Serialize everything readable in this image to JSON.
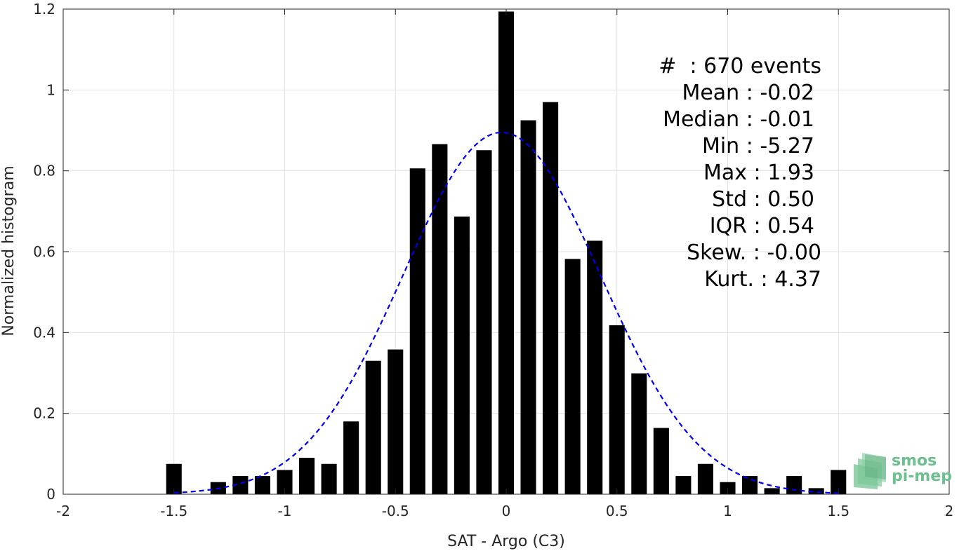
{
  "chart_data": {
    "type": "bar",
    "title": "",
    "xlabel": "SAT - Argo (C3)",
    "ylabel": "Normalized histogram",
    "xlim": [
      -2,
      2
    ],
    "ylim": [
      0,
      1.2
    ],
    "grid": true,
    "xticks": [
      -2,
      -1.5,
      -1,
      -0.5,
      0,
      0.5,
      1,
      1.5,
      2
    ],
    "xtick_labels": [
      "-2",
      "-1.5",
      "-1",
      "-0.5",
      "0",
      "0.5",
      "1",
      "1.5",
      "2"
    ],
    "yticks": [
      0,
      0.2,
      0.4,
      0.6,
      0.8,
      1,
      1.2
    ],
    "ytick_labels": [
      "0",
      "0.2",
      "0.4",
      "0.6",
      "0.8",
      "1",
      "1.2"
    ],
    "bar_width": 0.07,
    "bars": {
      "x": [
        -1.5,
        -1.3,
        -1.2,
        -1.1,
        -1.0,
        -0.9,
        -0.8,
        -0.7,
        -0.6,
        -0.5,
        -0.4,
        -0.3,
        -0.2,
        -0.1,
        0.0,
        0.1,
        0.2,
        0.3,
        0.4,
        0.5,
        0.6,
        0.7,
        0.8,
        0.9,
        1.0,
        1.1,
        1.2,
        1.3,
        1.4,
        1.5
      ],
      "values": [
        0.075,
        0.03,
        0.045,
        0.045,
        0.06,
        0.09,
        0.075,
        0.18,
        0.33,
        0.358,
        0.806,
        0.866,
        0.687,
        0.851,
        1.194,
        0.925,
        0.97,
        0.582,
        0.627,
        0.418,
        0.299,
        0.164,
        0.045,
        0.075,
        0.03,
        0.045,
        0.015,
        0.045,
        0.015,
        0.06
      ],
      "color": "#000000"
    },
    "fit": {
      "type": "gaussian",
      "style": "dashed",
      "color": "#0000ee",
      "mean": -0.02,
      "std": 0.445,
      "peak": 0.895,
      "x_range": [
        -1.5,
        1.5
      ]
    },
    "stats_lines": [
      "#  : 670 events",
      "Mean : -0.02",
      "Median : -0.01",
      "Min : -5.27",
      "Max : 1.93",
      "Std : 0.50",
      "IQR : 0.54",
      "Skew. : -0.00",
      "Kurt. : 4.37"
    ]
  },
  "logo": {
    "line1": "smos",
    "line2": "pi-mep",
    "color": "#6dbf8e"
  }
}
